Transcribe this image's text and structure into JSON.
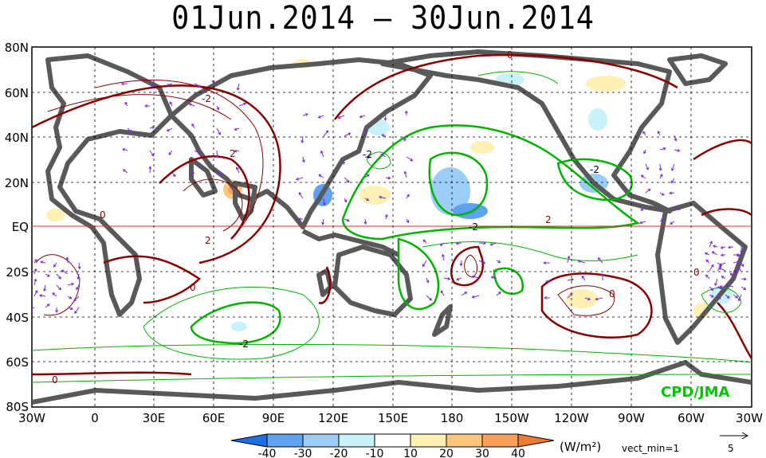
{
  "title": "01Jun.2014 – 30Jun.2014",
  "credit": "CPD/JMA",
  "units_label": "(W/m²)",
  "vector_min_label": "vect_min=1",
  "vector_ref_value": "5",
  "lat_labels": [
    "80N",
    "60N",
    "40N",
    "20N",
    "EQ",
    "20S",
    "40S",
    "60S",
    "80S"
  ],
  "lon_labels": [
    "30W",
    "0",
    "30E",
    "60E",
    "90E",
    "120E",
    "150E",
    "180",
    "150W",
    "120W",
    "90W",
    "60W",
    "30W"
  ],
  "legend": {
    "labels": [
      "-40",
      "-30",
      "-20",
      "-10",
      "10",
      "20",
      "30",
      "40"
    ],
    "colors": [
      "#1e6ee6",
      "#5fa2f0",
      "#9ccdf6",
      "#c8f2fa",
      "#ffffff",
      "#fff0b4",
      "#fdc77a",
      "#f8a058",
      "#f07a32"
    ]
  },
  "contour_labels": [
    {
      "text": "0",
      "color": "#8b0000"
    },
    {
      "text": "-2",
      "color": "#8b0000"
    },
    {
      "text": "2",
      "color": "#8b0000"
    },
    {
      "text": "-2",
      "color": "#000000"
    },
    {
      "text": "-2",
      "color": "#000000"
    },
    {
      "text": "2",
      "color": "#8b0000"
    },
    {
      "text": "-2",
      "color": "#000000"
    },
    {
      "text": "0",
      "color": "#8b0000"
    },
    {
      "text": "2",
      "color": "#8b0000"
    },
    {
      "text": "-2",
      "color": "#000000"
    },
    {
      "text": "0",
      "color": "#8b0000"
    },
    {
      "text": "0",
      "color": "#8b0000"
    },
    {
      "text": "0",
      "color": "#8b0000"
    },
    {
      "text": "0",
      "color": "#8b0000"
    }
  ],
  "colors": {
    "positive_contour": "#8b0000",
    "negative_contour": "#00b400",
    "land": "#595959",
    "vector": "#7a2cd6",
    "equator": "#e03030",
    "credit": "#00c800"
  }
}
